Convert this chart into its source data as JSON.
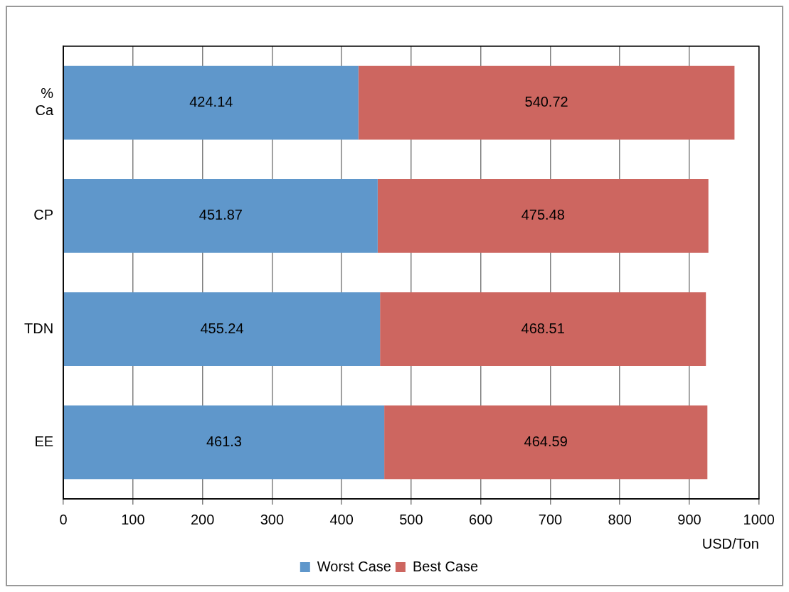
{
  "chart_data": {
    "type": "bar",
    "orientation": "horizontal",
    "stacked": true,
    "categories": [
      "% Ca",
      "CP",
      "TDN",
      "EE"
    ],
    "series": [
      {
        "name": "Worst Case",
        "color": "#5f97cb",
        "values": [
          424.14,
          451.87,
          455.24,
          461.3
        ]
      },
      {
        "name": "Best Case",
        "color": "#cd6660",
        "values": [
          540.72,
          475.48,
          468.51,
          464.59
        ]
      }
    ],
    "xlabel": "USD/Ton",
    "xlim": [
      0,
      1000
    ],
    "xticks": [
      0,
      100,
      200,
      300,
      400,
      500,
      600,
      700,
      800,
      900,
      1000
    ],
    "grid": "x",
    "legend": "bottom",
    "data_labels": true
  }
}
